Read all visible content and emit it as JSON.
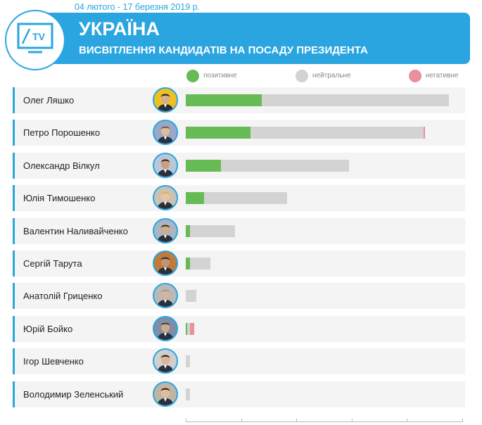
{
  "header": {
    "date_range": "04 лютого - 17 березня 2019 р.",
    "title": "УКРАЇНА",
    "subtitle": "ВИСВІТЛЕННЯ КАНДИДАТІВ НА ПОСАДУ ПРЕЗИДЕНТА",
    "logo_icon": "tv-screen-icon",
    "logo_text": "TV",
    "accent_color": "#2aa5e0"
  },
  "chart_data": {
    "type": "bar",
    "stacked": true,
    "orientation": "horizontal",
    "unit": "relative share of coverage (fraction of longest bar)",
    "categories": [
      "Олег Ляшко",
      "Петро Порошенко",
      "Олександр Вілкул",
      "Юлія Тимошенко",
      "Валентин Наливайченко",
      "Сергій Тарута",
      "Анатолій Гриценко",
      "Юрій Бойко",
      "Ігор Шевченко",
      "Володимир Зеленський"
    ],
    "series": [
      {
        "name": "позитивне",
        "color": "#66bb55",
        "values": [
          0.29,
          0.245,
          0.135,
          0.07,
          0.017,
          0.017,
          0,
          0.005,
          0,
          0
        ]
      },
      {
        "name": "нейтральне",
        "color": "#d3d3d3",
        "values": [
          0.71,
          0.66,
          0.485,
          0.315,
          0.17,
          0.077,
          0.04,
          0.012,
          0.017,
          0.017
        ]
      },
      {
        "name": "негативне",
        "color": "#e8909c",
        "values": [
          0,
          0.005,
          0,
          0,
          0,
          0,
          0,
          0.016,
          0,
          0
        ]
      }
    ],
    "legend_position": "top",
    "axis_ticks": 6,
    "grid": false
  }
}
